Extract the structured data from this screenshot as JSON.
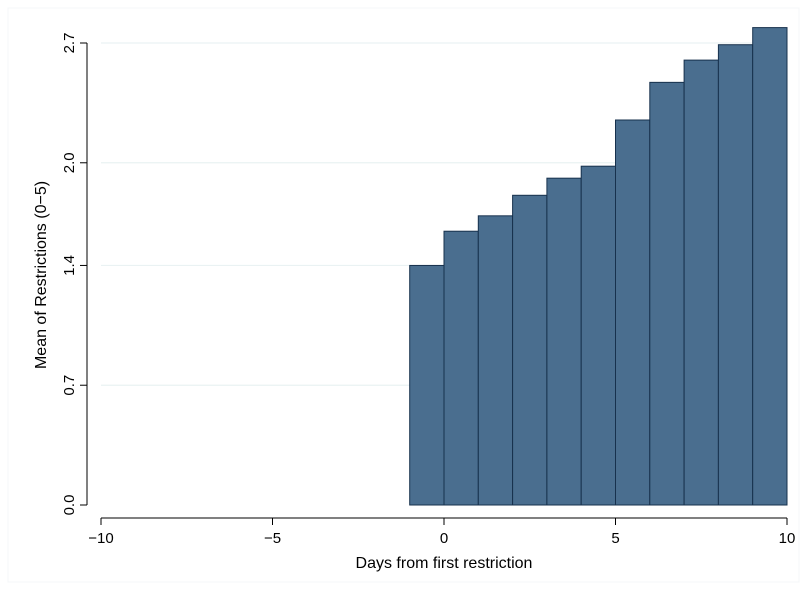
{
  "chart_data": {
    "type": "bar",
    "title": "",
    "xlabel": "Days from first restriction",
    "ylabel": "Mean of Restrictions (0−5)",
    "x_ticks": [
      -10,
      -5,
      0,
      5,
      10
    ],
    "x_tick_labels": [
      "−10",
      "−5",
      "0",
      "5",
      "10"
    ],
    "y_ticks": [
      0.0,
      0.7,
      1.4,
      2.0,
      2.7
    ],
    "y_tick_labels": [
      "0.0",
      "0.7",
      "1.4",
      "2.0",
      "2.7"
    ],
    "xlim": [
      -10,
      10
    ],
    "ylim": [
      0,
      2.8
    ],
    "grid": "horizontal",
    "bin_width": 1,
    "bars": [
      {
        "x_start": -1,
        "value": 1.4
      },
      {
        "x_start": 0,
        "value": 1.6
      },
      {
        "x_start": 1,
        "value": 1.69
      },
      {
        "x_start": 2,
        "value": 1.81
      },
      {
        "x_start": 3,
        "value": 1.91
      },
      {
        "x_start": 4,
        "value": 1.98
      },
      {
        "x_start": 5,
        "value": 2.25
      },
      {
        "x_start": 6,
        "value": 2.47
      },
      {
        "x_start": 7,
        "value": 2.6
      },
      {
        "x_start": 8,
        "value": 2.69
      },
      {
        "x_start": 9,
        "value": 2.79
      }
    ],
    "colors": {
      "bar_fill": "#4a6e8f",
      "bar_edge": "#17314d",
      "grid": "#eaf2f3",
      "axis": "#000000",
      "plot_border": "#eaf2f3"
    }
  }
}
